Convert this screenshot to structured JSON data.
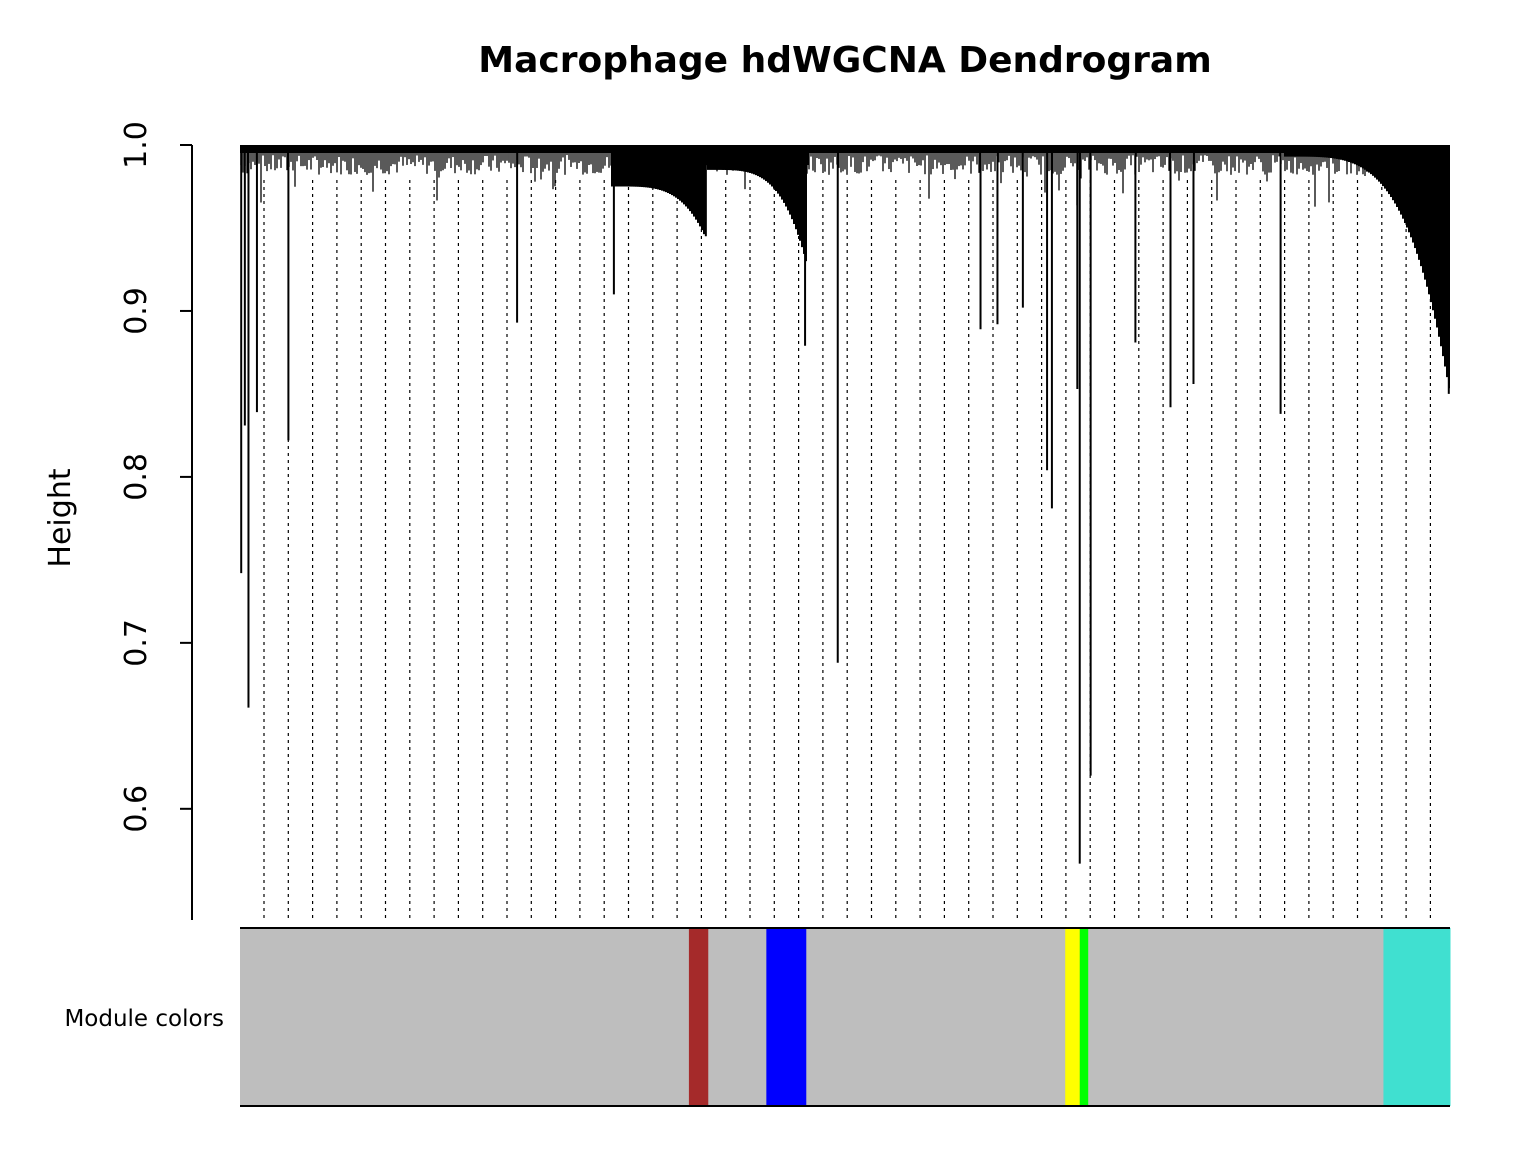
{
  "chart_data": {
    "type": "dendrogram",
    "title": "Macrophage hdWGCNA Dendrogram",
    "xlabel": "",
    "ylabel": "Height",
    "ylim": [
      0.533,
      1.0
    ],
    "y_ticks": [
      {
        "value": 0.6,
        "label": "0.6"
      },
      {
        "value": 0.7,
        "label": "0.7"
      },
      {
        "value": 0.8,
        "label": "0.8"
      },
      {
        "value": 0.9,
        "label": "0.9"
      },
      {
        "value": 1.0,
        "label": "1.0"
      }
    ],
    "grid": "dotted vertical guide lines",
    "color_row_label": "Module colors",
    "module_colors": [
      {
        "module": "grey",
        "color": "#BEBEBE",
        "from": 0.0,
        "to": 0.371
      },
      {
        "module": "brown",
        "color": "#A52A2A",
        "from": 0.371,
        "to": 0.387
      },
      {
        "module": "grey",
        "color": "#BEBEBE",
        "from": 0.387,
        "to": 0.435
      },
      {
        "module": "blue",
        "color": "#0000FF",
        "from": 0.435,
        "to": 0.468
      },
      {
        "module": "grey",
        "color": "#BEBEBE",
        "from": 0.468,
        "to": 0.682
      },
      {
        "module": "yellow",
        "color": "#FFFF00",
        "from": 0.682,
        "to": 0.694
      },
      {
        "module": "green",
        "color": "#00FF00",
        "from": 0.694,
        "to": 0.701
      },
      {
        "module": "grey",
        "color": "#BEBEBE",
        "from": 0.701,
        "to": 0.945
      },
      {
        "module": "turquoise",
        "color": "#40E0D0",
        "from": 0.945,
        "to": 1.0
      }
    ],
    "notable_leaf_heights": [
      {
        "x": 0.001,
        "height": 0.742
      },
      {
        "x": 0.004,
        "height": 0.831
      },
      {
        "x": 0.007,
        "height": 0.661
      },
      {
        "x": 0.014,
        "height": 0.839
      },
      {
        "x": 0.04,
        "height": 0.822
      },
      {
        "x": 0.229,
        "height": 0.893
      },
      {
        "x": 0.309,
        "height": 0.91
      },
      {
        "x": 0.385,
        "height": 0.945
      },
      {
        "x": 0.467,
        "height": 0.879
      },
      {
        "x": 0.494,
        "height": 0.688
      },
      {
        "x": 0.612,
        "height": 0.889
      },
      {
        "x": 0.626,
        "height": 0.892
      },
      {
        "x": 0.647,
        "height": 0.902
      },
      {
        "x": 0.667,
        "height": 0.804
      },
      {
        "x": 0.671,
        "height": 0.781
      },
      {
        "x": 0.692,
        "height": 0.853
      },
      {
        "x": 0.694,
        "height": 0.567
      },
      {
        "x": 0.703,
        "height": 0.62
      },
      {
        "x": 0.74,
        "height": 0.881
      },
      {
        "x": 0.769,
        "height": 0.842
      },
      {
        "x": 0.788,
        "height": 0.856
      },
      {
        "x": 0.86,
        "height": 0.838
      },
      {
        "x": 0.999,
        "height": 0.85
      }
    ]
  }
}
